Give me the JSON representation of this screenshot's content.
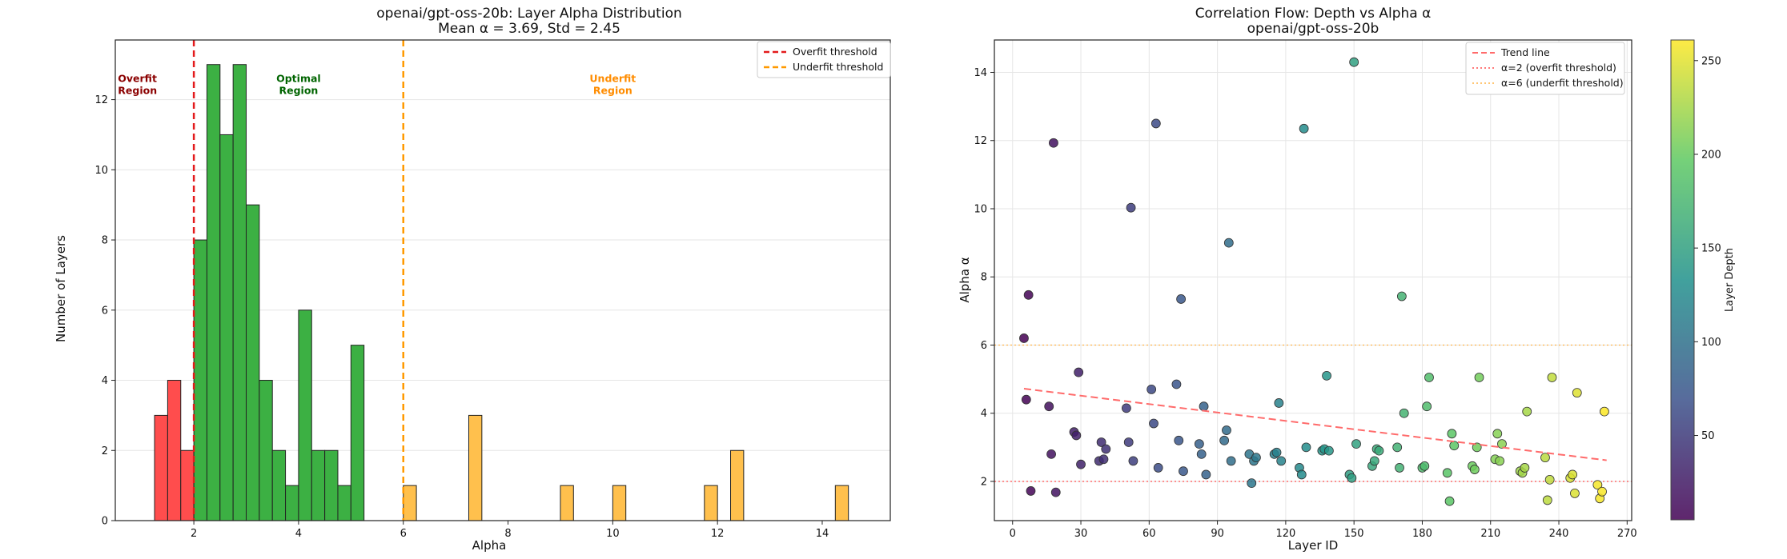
{
  "chart_data": [
    {
      "type": "bar",
      "title": "openai/gpt-oss-20b: Layer Alpha Distribution",
      "subtitle": "Mean α = 3.69, Std = 2.45",
      "xlabel": "Alpha",
      "ylabel": "Number of Layers",
      "xlim": [
        0.5,
        15.3
      ],
      "ylim": [
        0,
        13.7
      ],
      "xticks": [
        2,
        4,
        6,
        8,
        10,
        12,
        14
      ],
      "yticks": [
        0,
        2,
        4,
        6,
        8,
        10,
        12
      ],
      "grid": true,
      "legend_position": "top-right",
      "bin_width": 0.25,
      "bins": [
        {
          "x0": 1.25,
          "count": 3,
          "region": "overfit"
        },
        {
          "x0": 1.5,
          "count": 4,
          "region": "overfit"
        },
        {
          "x0": 1.75,
          "count": 2,
          "region": "overfit"
        },
        {
          "x0": 2.0,
          "count": 8,
          "region": "optimal"
        },
        {
          "x0": 2.25,
          "count": 13,
          "region": "optimal"
        },
        {
          "x0": 2.5,
          "count": 11,
          "region": "optimal"
        },
        {
          "x0": 2.75,
          "count": 13,
          "region": "optimal"
        },
        {
          "x0": 3.0,
          "count": 9,
          "region": "optimal"
        },
        {
          "x0": 3.25,
          "count": 4,
          "region": "optimal"
        },
        {
          "x0": 3.5,
          "count": 2,
          "region": "optimal"
        },
        {
          "x0": 3.75,
          "count": 1,
          "region": "optimal"
        },
        {
          "x0": 4.0,
          "count": 6,
          "region": "optimal"
        },
        {
          "x0": 4.25,
          "count": 2,
          "region": "optimal"
        },
        {
          "x0": 4.5,
          "count": 2,
          "region": "optimal"
        },
        {
          "x0": 4.75,
          "count": 1,
          "region": "optimal"
        },
        {
          "x0": 5.0,
          "count": 5,
          "region": "optimal"
        },
        {
          "x0": 6.0,
          "count": 1,
          "region": "underfit"
        },
        {
          "x0": 7.25,
          "count": 3,
          "region": "underfit"
        },
        {
          "x0": 9.0,
          "count": 1,
          "region": "underfit"
        },
        {
          "x0": 10.0,
          "count": 1,
          "region": "underfit"
        },
        {
          "x0": 11.75,
          "count": 1,
          "region": "underfit"
        },
        {
          "x0": 12.25,
          "count": 2,
          "region": "underfit"
        },
        {
          "x0": 14.25,
          "count": 1,
          "region": "underfit"
        }
      ],
      "thresholds": [
        {
          "name": "Overfit threshold",
          "x": 2,
          "color": "#e31a1c"
        },
        {
          "name": "Underfit threshold",
          "x": 6,
          "color": "#ff9900"
        }
      ],
      "region_labels": [
        {
          "lines": [
            "Overfit",
            "Region"
          ],
          "x": 0.55,
          "y": 12.5,
          "color": "#8b0000",
          "anchor": "start"
        },
        {
          "lines": [
            "Optimal",
            "Region"
          ],
          "x": 4.0,
          "y": 12.5,
          "color": "#006400",
          "anchor": "middle"
        },
        {
          "lines": [
            "Underfit",
            "Region"
          ],
          "x": 10.0,
          "y": 12.5,
          "color": "#ff8c00",
          "anchor": "middle"
        }
      ],
      "colors": {
        "overfit": "#ff4d4d",
        "optimal": "#3cb043",
        "underfit": "#ffc04d",
        "edge": "#222222"
      }
    },
    {
      "type": "scatter",
      "title": "Correlation Flow: Depth vs Alpha α",
      "subtitle": "openai/gpt-oss-20b",
      "xlabel": "Layer ID",
      "ylabel": "Alpha α",
      "xlim": [
        -8,
        272
      ],
      "ylim": [
        0.85,
        14.95
      ],
      "xticks": [
        0,
        30,
        60,
        90,
        120,
        150,
        180,
        210,
        240,
        270
      ],
      "yticks": [
        2,
        4,
        6,
        8,
        10,
        12,
        14
      ],
      "grid": true,
      "legend_position": "top-right",
      "colorbar": {
        "label": "Layer Depth",
        "min": 5,
        "max": 261,
        "ticks": [
          50,
          100,
          150,
          200,
          250
        ]
      },
      "trend_line": {
        "name": "Trend line",
        "x": [
          5,
          261
        ],
        "y": [
          4.72,
          2.62
        ],
        "color": "#ff6b6b"
      },
      "threshold_lines": [
        {
          "name": "α=2 (overfit threshold)",
          "y": 2,
          "color": "#ff4d4d"
        },
        {
          "name": "α=6 (underfit threshold)",
          "y": 6,
          "color": "#ffb347"
        }
      ],
      "points": [
        [
          5,
          6.2
        ],
        [
          6,
          4.4
        ],
        [
          7,
          7.47
        ],
        [
          8,
          1.72
        ],
        [
          16,
          4.2
        ],
        [
          17,
          2.8
        ],
        [
          18,
          11.93
        ],
        [
          19,
          1.68
        ],
        [
          27,
          3.45
        ],
        [
          28,
          3.35
        ],
        [
          29,
          5.2
        ],
        [
          30,
          2.5
        ],
        [
          38,
          2.6
        ],
        [
          39,
          3.15
        ],
        [
          40,
          2.65
        ],
        [
          41,
          2.95
        ],
        [
          50,
          4.15
        ],
        [
          51,
          3.15
        ],
        [
          52,
          10.03
        ],
        [
          53,
          2.6
        ],
        [
          61,
          4.7
        ],
        [
          62,
          3.7
        ],
        [
          63,
          12.5
        ],
        [
          64,
          2.4
        ],
        [
          72,
          4.85
        ],
        [
          73,
          3.2
        ],
        [
          74,
          7.35
        ],
        [
          75,
          2.3
        ],
        [
          82,
          3.1
        ],
        [
          83,
          2.8
        ],
        [
          84,
          4.2
        ],
        [
          85,
          2.2
        ],
        [
          93,
          3.2
        ],
        [
          94,
          3.5
        ],
        [
          95,
          9.0
        ],
        [
          96,
          2.6
        ],
        [
          104,
          2.8
        ],
        [
          105,
          1.95
        ],
        [
          106,
          2.6
        ],
        [
          107,
          2.7
        ],
        [
          115,
          2.8
        ],
        [
          116,
          2.85
        ],
        [
          117,
          4.3
        ],
        [
          118,
          2.6
        ],
        [
          126,
          2.4
        ],
        [
          127,
          2.2
        ],
        [
          128,
          12.35
        ],
        [
          129,
          3.0
        ],
        [
          136,
          2.9
        ],
        [
          137,
          2.95
        ],
        [
          138,
          5.1
        ],
        [
          139,
          2.9
        ],
        [
          148,
          2.2
        ],
        [
          149,
          2.1
        ],
        [
          150,
          14.3
        ],
        [
          151,
          3.1
        ],
        [
          158,
          2.45
        ],
        [
          159,
          2.6
        ],
        [
          160,
          2.95
        ],
        [
          161,
          2.9
        ],
        [
          169,
          3.0
        ],
        [
          170,
          2.4
        ],
        [
          171,
          7.43
        ],
        [
          172,
          4.0
        ],
        [
          180,
          2.4
        ],
        [
          181,
          2.45
        ],
        [
          182,
          4.2
        ],
        [
          183,
          5.05
        ],
        [
          191,
          2.25
        ],
        [
          192,
          1.42
        ],
        [
          193,
          3.4
        ],
        [
          194,
          3.05
        ],
        [
          202,
          2.45
        ],
        [
          203,
          2.35
        ],
        [
          204,
          3.0
        ],
        [
          205,
          5.05
        ],
        [
          212,
          2.65
        ],
        [
          213,
          3.4
        ],
        [
          214,
          2.6
        ],
        [
          215,
          3.1
        ],
        [
          223,
          2.3
        ],
        [
          224,
          2.25
        ],
        [
          225,
          2.4
        ],
        [
          226,
          4.05
        ],
        [
          234,
          2.7
        ],
        [
          235,
          1.45
        ],
        [
          236,
          2.05
        ],
        [
          237,
          5.05
        ],
        [
          245,
          2.1
        ],
        [
          246,
          2.2
        ],
        [
          247,
          1.65
        ],
        [
          248,
          4.6
        ],
        [
          257,
          1.9
        ],
        [
          258,
          1.5
        ],
        [
          259,
          1.7
        ],
        [
          260,
          4.05
        ]
      ]
    }
  ]
}
